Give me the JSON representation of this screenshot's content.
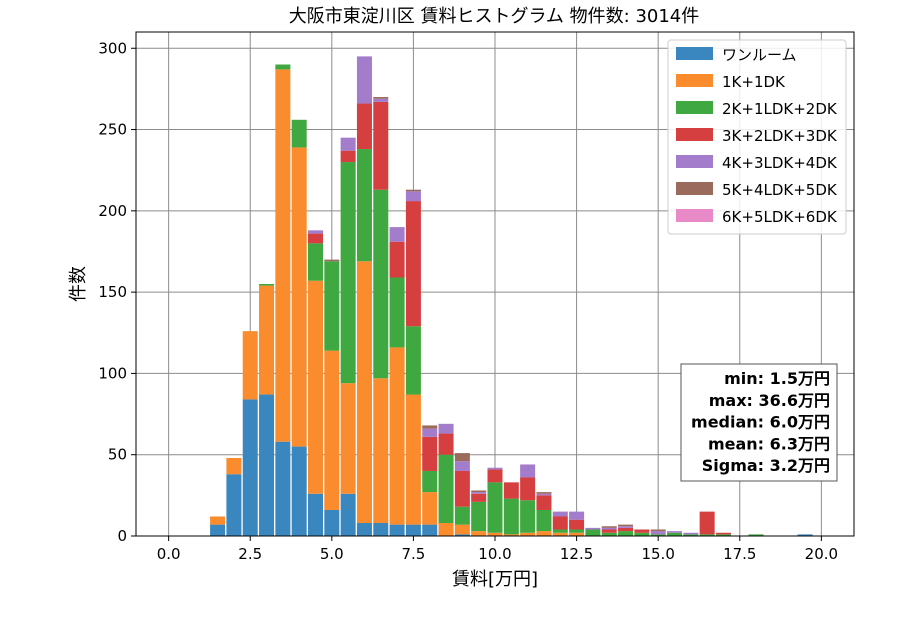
{
  "chart_data": {
    "type": "bar",
    "stacked": true,
    "title": "大阪市東淀川区 賃料ヒストグラム 物件数: 3014件",
    "xlabel": "賃料[万円]",
    "ylabel": "件数",
    "xlim": [
      -1.0,
      21.0
    ],
    "ylim": [
      0,
      310
    ],
    "xticks": [
      "0.0",
      "2.5",
      "5.0",
      "7.5",
      "10.0",
      "12.5",
      "15.0",
      "17.5",
      "20.0"
    ],
    "yticks": [
      "0",
      "50",
      "100",
      "150",
      "200",
      "250",
      "300"
    ],
    "grid": true,
    "legend_position": "top-right",
    "bin_width": 0.5,
    "x": [
      1.5,
      2.0,
      2.5,
      3.0,
      3.5,
      4.0,
      4.5,
      5.0,
      5.5,
      6.0,
      6.5,
      7.0,
      7.5,
      8.0,
      8.5,
      9.0,
      9.5,
      10.0,
      10.5,
      11.0,
      11.5,
      12.0,
      12.5,
      13.0,
      13.5,
      14.0,
      14.5,
      15.0,
      15.5,
      16.0,
      16.5,
      17.0,
      17.5,
      18.0,
      18.5,
      19.0,
      19.5
    ],
    "series": [
      {
        "name": "ワンルーム",
        "color": "#3a87c0",
        "values": [
          7,
          38,
          84,
          87,
          58,
          55,
          26,
          16,
          26,
          8,
          8,
          7,
          7,
          7,
          0,
          1,
          0,
          0,
          0,
          0,
          0,
          0,
          0,
          0,
          0,
          0,
          0,
          0,
          0,
          0,
          0,
          0,
          0,
          0,
          0,
          0,
          1
        ]
      },
      {
        "name": "1K+1DK",
        "color": "#fa8c2e",
        "values": [
          5,
          10,
          42,
          67,
          229,
          184,
          131,
          98,
          68,
          161,
          89,
          109,
          80,
          20,
          8,
          6,
          3,
          2,
          1,
          2,
          3,
          2,
          2,
          0,
          0,
          0,
          0,
          0,
          0,
          0,
          0,
          0,
          0,
          0,
          0,
          0,
          0
        ]
      },
      {
        "name": "2K+1LDK+2DK",
        "color": "#40a840",
        "values": [
          0,
          0,
          0,
          1,
          3,
          17,
          23,
          55,
          136,
          69,
          116,
          43,
          42,
          13,
          42,
          11,
          18,
          31,
          22,
          20,
          13,
          2,
          2,
          4,
          2,
          3,
          2,
          1,
          2,
          1,
          1,
          1,
          0,
          1,
          0,
          0,
          0
        ]
      },
      {
        "name": "3K+2LDK+3DK",
        "color": "#d63f3f",
        "values": [
          0,
          0,
          0,
          0,
          0,
          0,
          6,
          0,
          7,
          28,
          54,
          22,
          77,
          21,
          13,
          22,
          5,
          8,
          10,
          14,
          9,
          8,
          6,
          0,
          2,
          2,
          2,
          0,
          0,
          0,
          14,
          1,
          0,
          0,
          0,
          0,
          0
        ]
      },
      {
        "name": "4K+3LDK+4DK",
        "color": "#a37ccc",
        "values": [
          0,
          0,
          0,
          0,
          0,
          0,
          2,
          0,
          8,
          29,
          2,
          9,
          6,
          5,
          6,
          6,
          1,
          1,
          0,
          8,
          1,
          3,
          5,
          1,
          1,
          1,
          0,
          2,
          1,
          1,
          0,
          0,
          0,
          0,
          0,
          0,
          0
        ]
      },
      {
        "name": "5K+4LDK+5DK",
        "color": "#9a6a5c",
        "values": [
          0,
          0,
          0,
          0,
          0,
          0,
          0,
          1,
          0,
          0,
          1,
          0,
          1,
          2,
          0,
          5,
          1,
          0,
          0,
          0,
          1,
          0,
          0,
          0,
          1,
          1,
          0,
          1,
          0,
          0,
          0,
          0,
          0,
          0,
          0,
          0,
          0
        ]
      },
      {
        "name": "6K+5LDK+6DK",
        "color": "#e88ac8",
        "values": [
          0,
          0,
          0,
          0,
          0,
          0,
          0,
          0,
          0,
          0,
          0,
          0,
          0,
          0,
          0,
          0,
          0,
          0,
          0,
          0,
          0,
          0,
          0,
          0,
          0,
          0,
          0,
          0,
          0,
          0,
          0,
          0,
          0,
          0,
          0,
          0,
          0
        ]
      }
    ],
    "stats": [
      "min: 1.5万円",
      "max: 36.6万円",
      "median: 6.0万円",
      "mean: 6.3万円",
      "Sigma: 3.2万円"
    ]
  }
}
